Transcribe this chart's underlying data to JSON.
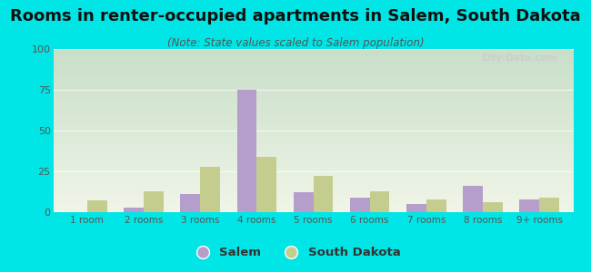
{
  "title": "Rooms in renter-occupied apartments in Salem, South Dakota",
  "subtitle": "(Note: State values scaled to Salem population)",
  "categories": [
    "1 room",
    "2 rooms",
    "3 rooms",
    "4 rooms",
    "5 rooms",
    "6 rooms",
    "7 rooms",
    "8 rooms",
    "9+ rooms"
  ],
  "salem_values": [
    0,
    3,
    11,
    75,
    12,
    9,
    5,
    16,
    8
  ],
  "sd_values": [
    7,
    13,
    28,
    34,
    22,
    13,
    8,
    6,
    9
  ],
  "salem_color": "#b59dcc",
  "sd_color": "#c5cd8e",
  "background_outer": "#00e5e5",
  "grad_top": "#c8dfc8",
  "grad_bottom": "#f0f5e8",
  "ylim": [
    0,
    100
  ],
  "yticks": [
    0,
    25,
    50,
    75,
    100
  ],
  "title_fontsize": 13,
  "subtitle_fontsize": 8.5,
  "watermark": "City-Data.com",
  "legend_salem": "Salem",
  "legend_sd": "South Dakota",
  "grid_color": "#e0e8d8",
  "tick_color": "#555555"
}
